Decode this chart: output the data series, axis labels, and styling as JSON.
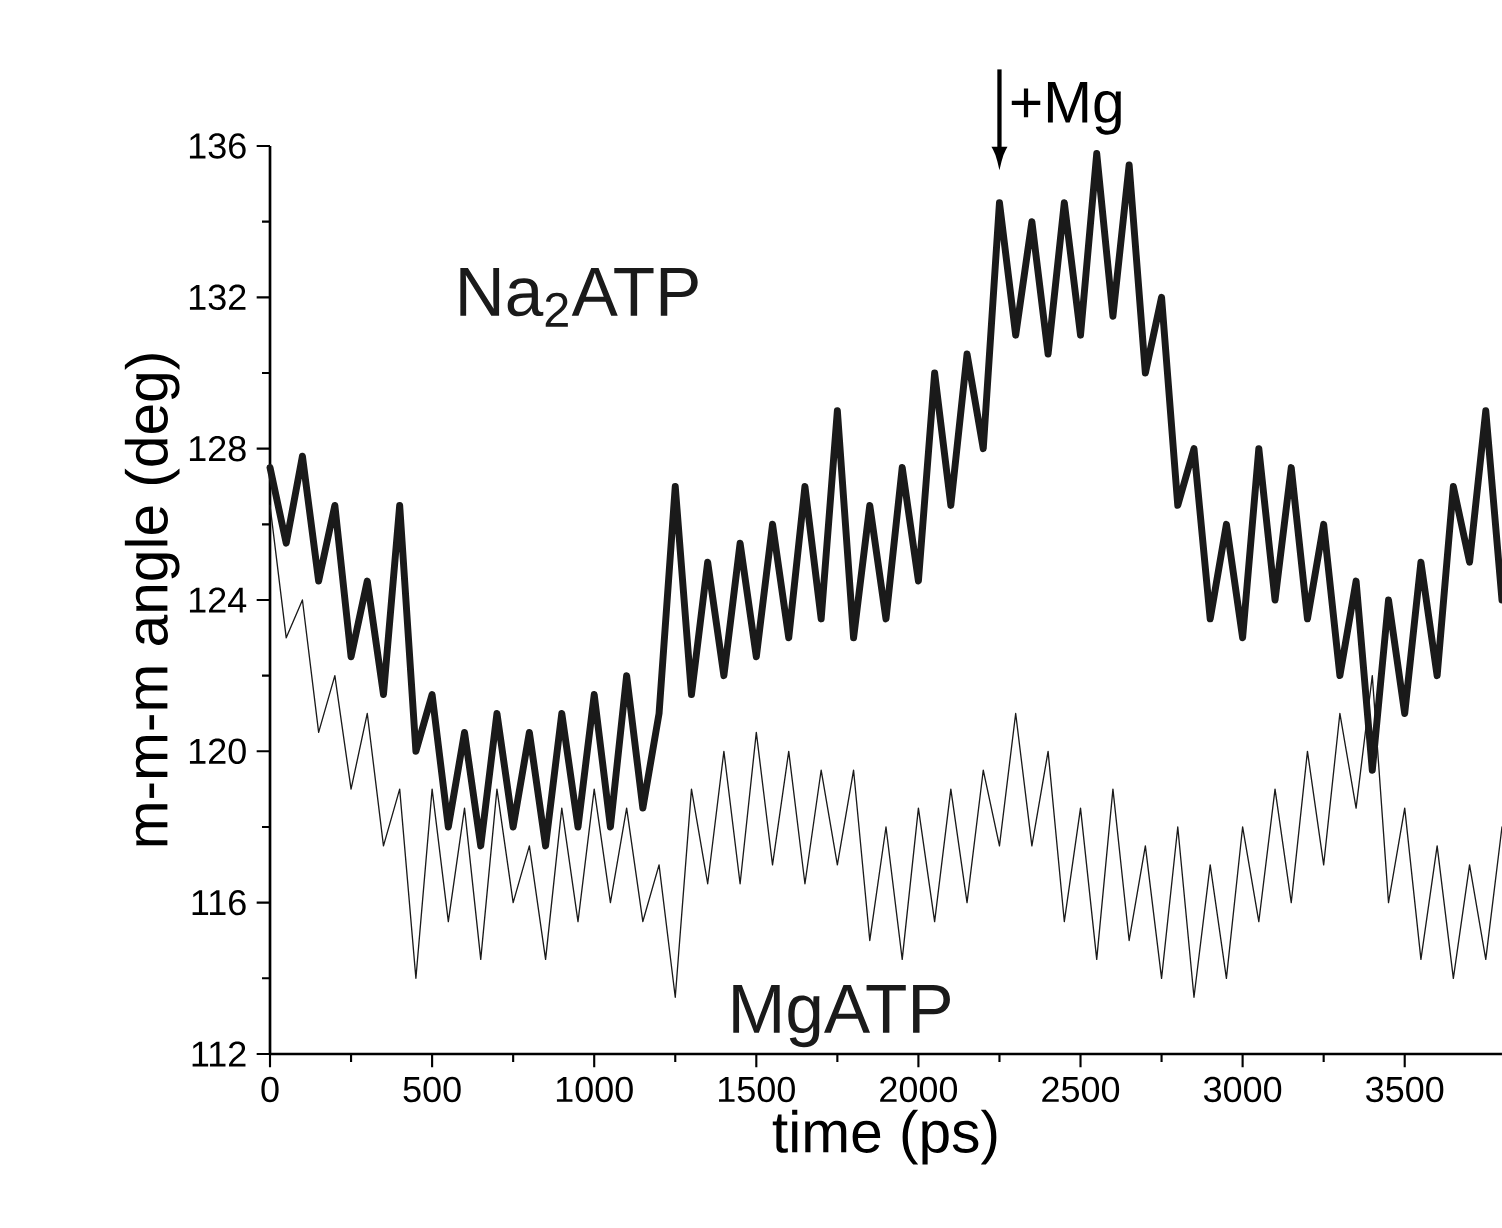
{
  "chart_data": {
    "type": "line",
    "xlabel": "time (ps)",
    "ylabel": "m-m-m angle (deg)",
    "xlim": [
      0,
      3800
    ],
    "ylim": [
      112,
      136
    ],
    "xticks": [
      0,
      500,
      1000,
      1500,
      2000,
      2500,
      3000,
      3500
    ],
    "yticks": [
      112,
      116,
      120,
      124,
      128,
      132,
      136
    ],
    "annotations": [
      {
        "text": "+Mg",
        "x": 2250,
        "y": 134.5
      }
    ],
    "x": [
      0,
      50,
      100,
      150,
      200,
      250,
      300,
      350,
      400,
      450,
      500,
      550,
      600,
      650,
      700,
      750,
      800,
      850,
      900,
      950,
      1000,
      1050,
      1100,
      1150,
      1200,
      1250,
      1300,
      1350,
      1400,
      1450,
      1500,
      1550,
      1600,
      1650,
      1700,
      1750,
      1800,
      1850,
      1900,
      1950,
      2000,
      2050,
      2100,
      2150,
      2200,
      2250,
      2300,
      2350,
      2400,
      2450,
      2500,
      2550,
      2600,
      2650,
      2700,
      2750,
      2800,
      2850,
      2900,
      2950,
      3000,
      3050,
      3100,
      3150,
      3200,
      3250,
      3300,
      3350,
      3400,
      3450,
      3500,
      3550,
      3600,
      3650,
      3700,
      3750,
      3800
    ],
    "series": [
      {
        "name": "Na$_{2}$ATP",
        "color": "#1a1a1a",
        "values": [
          127.5,
          125.5,
          127.8,
          124.5,
          126.5,
          122.5,
          124.5,
          121.5,
          126.5,
          120,
          121.5,
          118,
          120.5,
          117.5,
          121,
          118,
          120.5,
          117.5,
          121,
          118,
          121.5,
          118,
          122,
          118.5,
          121,
          127,
          121.5,
          125,
          122,
          125.5,
          122.5,
          126,
          123,
          127,
          123.5,
          129,
          123,
          126.5,
          123.5,
          127.5,
          124.5,
          130,
          126.5,
          130.5,
          128,
          134.5,
          131,
          134,
          130.5,
          134.5,
          131,
          135.8,
          131.5,
          135.5,
          130,
          132,
          126.5,
          128,
          123.5,
          126,
          123,
          128,
          124,
          127.5,
          123.5,
          126,
          122,
          124.5,
          119.5,
          124,
          121,
          125,
          122,
          127,
          125,
          129,
          124
        ]
      },
      {
        "name": "MgATP",
        "color": "#1a1a1a",
        "values": [
          126.5,
          123,
          124,
          120.5,
          122,
          119,
          121,
          117.5,
          119,
          114,
          119,
          115.5,
          118.5,
          114.5,
          119,
          116,
          117.5,
          114.5,
          118.5,
          115.5,
          119,
          116,
          118.5,
          115.5,
          117,
          113.5,
          119,
          116.5,
          120,
          116.5,
          120.5,
          117,
          120,
          116.5,
          119.5,
          117,
          119.5,
          115,
          118,
          114.5,
          118.5,
          115.5,
          119,
          116,
          119.5,
          117.5,
          121,
          117.5,
          120,
          115.5,
          118.5,
          114.5,
          119,
          115,
          117.5,
          114,
          118,
          113.5,
          117,
          114,
          118,
          115.5,
          119,
          116,
          120,
          117,
          121,
          118.5,
          122,
          116,
          118.5,
          114.5,
          117.5,
          114,
          117,
          114.5,
          118
        ]
      }
    ]
  }
}
